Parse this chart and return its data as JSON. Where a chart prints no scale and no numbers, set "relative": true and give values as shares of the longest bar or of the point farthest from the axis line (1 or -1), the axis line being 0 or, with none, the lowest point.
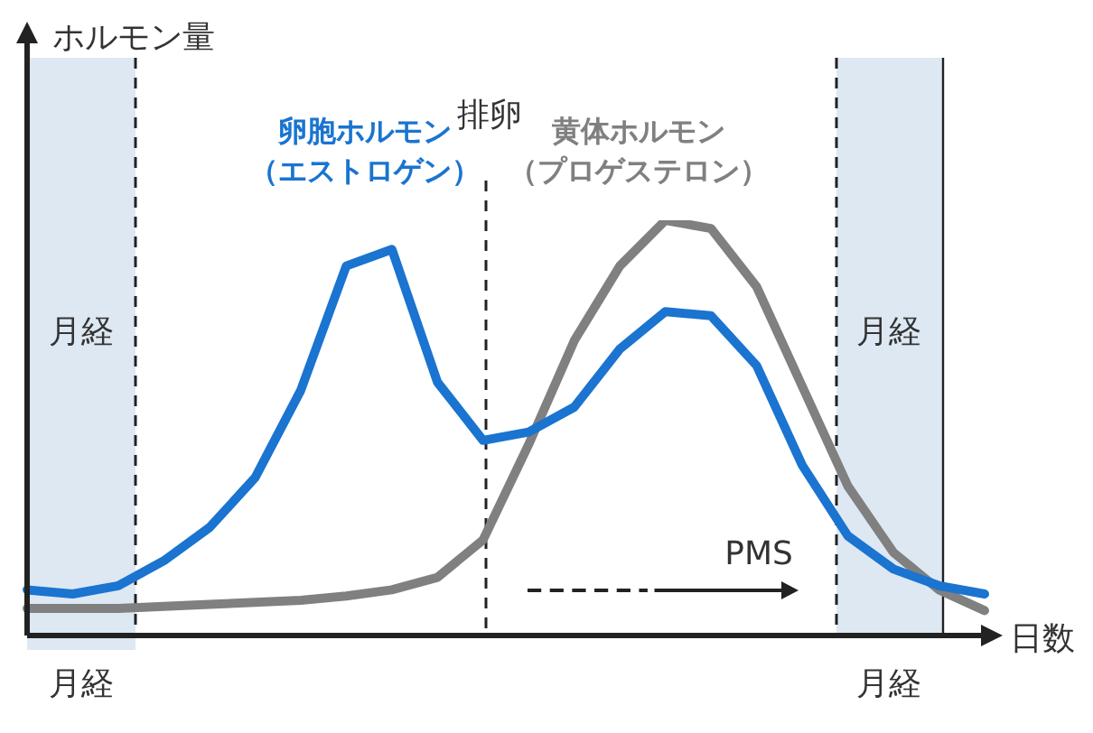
{
  "chart_data": {
    "type": "line",
    "relative": true,
    "xlabel": "日数",
    "legend": false,
    "marker": "none",
    "line_style": "solid",
    "categories": [
      null,
      null,
      null,
      null,
      null,
      null,
      null,
      null,
      null,
      null,
      null,
      null,
      null,
      null,
      null,
      null,
      null,
      null,
      null,
      null,
      null,
      null
    ],
    "series": [
      {
        "name": "卵胞ホルモン（エストロゲン）",
        "color": "#1a74d0",
        "values": [
          0.11,
          0.1,
          0.12,
          0.18,
          0.26,
          0.38,
          0.59,
          0.89,
          0.93,
          0.61,
          0.47,
          0.49,
          0.55,
          0.69,
          0.78,
          0.77,
          0.65,
          0.41,
          0.24,
          0.16,
          0.12,
          0.1
        ]
      },
      {
        "name": "黄体ホルモン（プロゲステロン）",
        "color": "#808080",
        "values": [
          0.065,
          0.065,
          0.065,
          0.07,
          0.075,
          0.08,
          0.085,
          0.095,
          0.11,
          0.14,
          0.23,
          0.46,
          0.71,
          0.89,
          1,
          0.98,
          0.84,
          0.6,
          0.36,
          0.2,
          0.11,
          0.06
        ]
      }
    ],
    "annotations": [
      "ホルモン量",
      "月経",
      "月経",
      "排卵",
      "月経",
      "月経",
      "PMS"
    ]
  }
}
